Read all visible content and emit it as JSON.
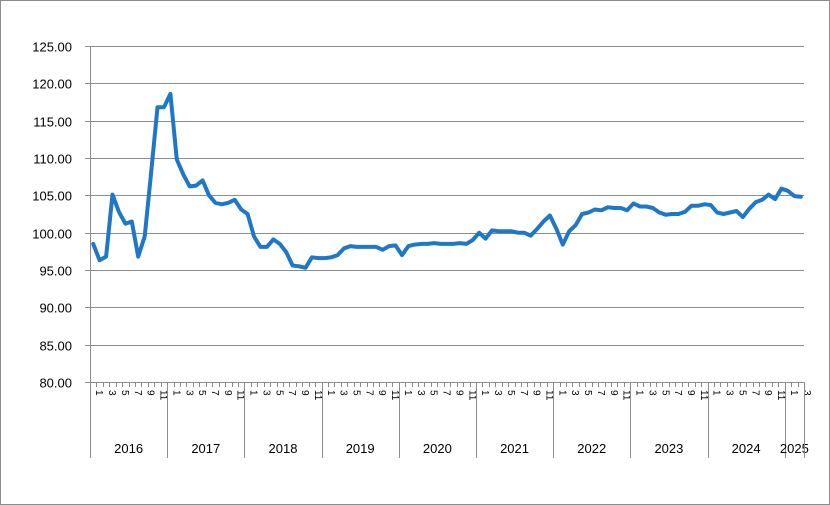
{
  "chart_data": {
    "type": "line",
    "title": "",
    "xlabel": "",
    "ylabel": "",
    "ylim": [
      80,
      125
    ],
    "yticks": [
      "80.00",
      "85.00",
      "90.00",
      "95.00",
      "100.00",
      "105.00",
      "110.00",
      "115.00",
      "120.00",
      "125.00"
    ],
    "grid": "horizontal",
    "line_color": "#1F77C8",
    "years": [
      {
        "label": "2016",
        "start": 0,
        "months": 12
      },
      {
        "label": "2017",
        "start": 12,
        "months": 12
      },
      {
        "label": "2018",
        "start": 24,
        "months": 12
      },
      {
        "label": "2019",
        "start": 36,
        "months": 12
      },
      {
        "label": "2020",
        "start": 48,
        "months": 12
      },
      {
        "label": "2021",
        "start": 60,
        "months": 12
      },
      {
        "label": "2022",
        "start": 72,
        "months": 12
      },
      {
        "label": "2023",
        "start": 84,
        "months": 12
      },
      {
        "label": "2024",
        "start": 96,
        "months": 12
      },
      {
        "label": "2025",
        "start": 108,
        "months": 3
      }
    ],
    "series": [
      {
        "values": [
          98.5,
          96.3,
          96.8,
          105.1,
          102.8,
          101.2,
          101.5,
          96.8,
          99.5,
          108.0,
          116.8,
          116.8,
          118.6,
          109.8,
          107.8,
          106.2,
          106.3,
          107.0,
          105.0,
          104.0,
          103.8,
          104.0,
          104.4,
          103.1,
          102.5,
          99.5,
          98.1,
          98.1,
          99.1,
          98.5,
          97.4,
          95.6,
          95.5,
          95.3,
          96.7,
          96.6,
          96.6,
          96.7,
          97.0,
          97.9,
          98.2,
          98.1,
          98.1,
          98.1,
          98.1,
          97.7,
          98.2,
          98.3,
          97.0,
          98.2,
          98.4,
          98.5,
          98.5,
          98.6,
          98.5,
          98.5,
          98.5,
          98.6,
          98.5,
          99.0,
          100.0,
          99.2,
          100.3,
          100.2,
          100.2,
          100.2,
          100.0,
          100.0,
          99.6,
          100.5,
          101.5,
          102.3,
          100.5,
          98.4,
          100.2,
          101.0,
          102.5,
          102.7,
          103.1,
          103.0,
          103.4,
          103.3,
          103.3,
          103.0,
          103.9,
          103.5,
          103.5,
          103.3,
          102.7,
          102.4,
          102.5,
          102.5,
          102.8,
          103.6,
          103.6,
          103.8,
          103.7,
          102.7,
          102.5,
          102.7,
          102.9,
          102.1,
          103.2,
          104.1,
          104.4,
          105.1,
          104.5,
          105.9,
          105.6,
          104.9,
          104.8
        ]
      }
    ]
  }
}
